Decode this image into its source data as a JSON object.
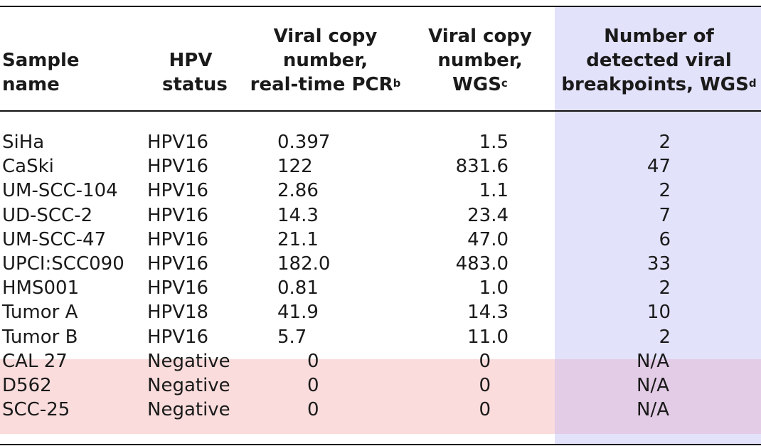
{
  "headers": {
    "sample": [
      "Sample",
      "name"
    ],
    "hpv": [
      "HPV",
      "status"
    ],
    "pcr": [
      "Viral copy",
      "number,",
      "real-time PCR"
    ],
    "pcr_sup": "b",
    "wgs": [
      "Viral copy",
      "number,",
      "WGS"
    ],
    "wgs_sup": "c",
    "bp": [
      "Number of",
      "detected viral",
      "breakpoints, WGS"
    ],
    "bp_sup": "d"
  },
  "rows": [
    {
      "name": "SiHa",
      "hpv": "HPV16",
      "pcr": "0.397",
      "wgs": "1.5",
      "bp": "2"
    },
    {
      "name": "CaSki",
      "hpv": "HPV16",
      "pcr": "122",
      "wgs": "831.6",
      "bp": "47"
    },
    {
      "name": "UM-SCC-104",
      "hpv": "HPV16",
      "pcr": "2.86",
      "wgs": "1.1",
      "bp": "2"
    },
    {
      "name": "UD-SCC-2",
      "hpv": "HPV16",
      "pcr": "14.3",
      "wgs": "23.4",
      "bp": "7"
    },
    {
      "name": "UM-SCC-47",
      "hpv": "HPV16",
      "pcr": "21.1",
      "wgs": "47.0",
      "bp": "6"
    },
    {
      "name": "UPCI:SCC090",
      "hpv": "HPV16",
      "pcr": "182.0",
      "wgs": "483.0",
      "bp": "33"
    },
    {
      "name": "HMS001",
      "hpv": "HPV16",
      "pcr": "0.81",
      "wgs": "1.0",
      "bp": "2"
    },
    {
      "name": "Tumor A",
      "hpv": "HPV18",
      "pcr": "41.9",
      "wgs": "14.3",
      "bp": "10"
    },
    {
      "name": "Tumor B",
      "hpv": "HPV16",
      "pcr": "5.7",
      "wgs": "11.0",
      "bp": "2"
    },
    {
      "name": "CAL 27",
      "hpv": "Negative",
      "pcr": "0",
      "wgs": "0",
      "bp": "N/A"
    },
    {
      "name": "D562",
      "hpv": "Negative",
      "pcr": "0",
      "wgs": "0",
      "bp": "N/A"
    },
    {
      "name": "SCC-25",
      "hpv": "Negative",
      "pcr": "0",
      "wgs": "0",
      "bp": "N/A"
    }
  ],
  "colors": {
    "wgs_highlight": "#e3e2fb",
    "negative_highlight": "#fadcdc",
    "overlap": "#e3cce6"
  }
}
